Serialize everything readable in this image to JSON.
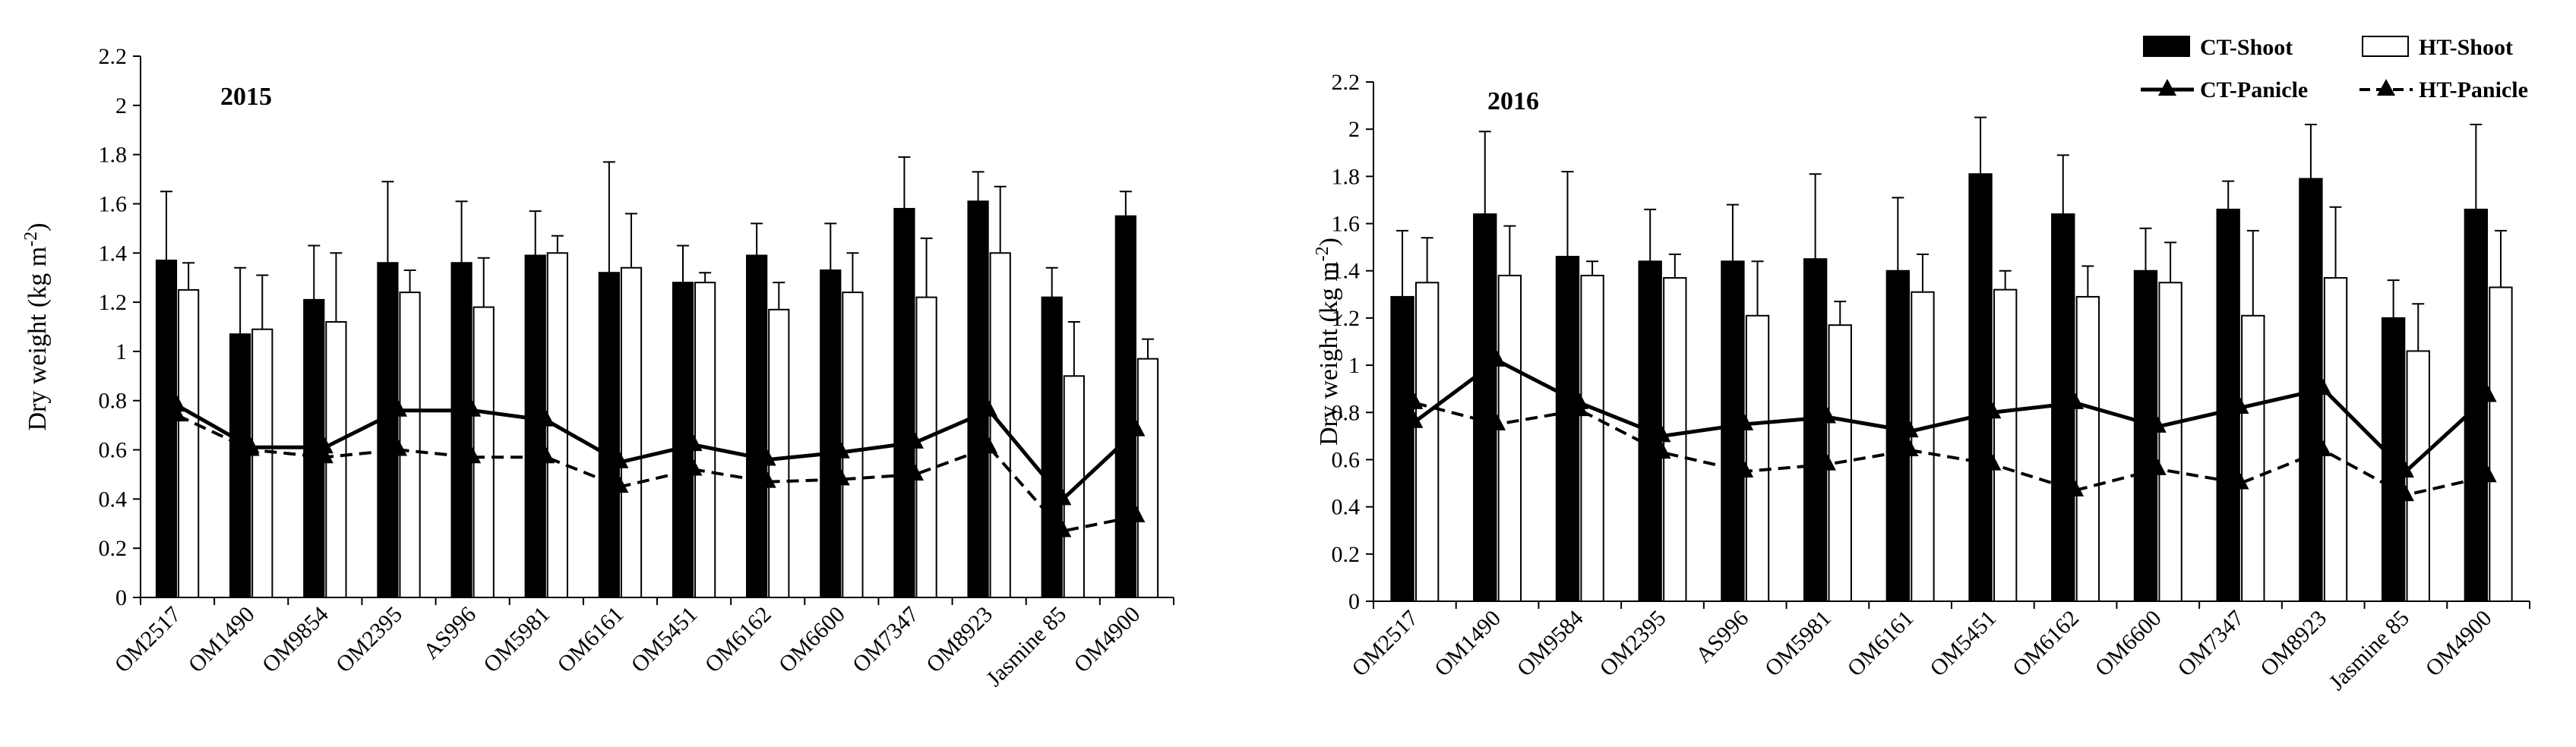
{
  "legend": {
    "items": [
      {
        "label": "CT-Shoot",
        "kind": "bar-filled"
      },
      {
        "label": "HT-Shoot",
        "kind": "bar-open"
      },
      {
        "label": "CT-Panicle",
        "kind": "line-solid"
      },
      {
        "label": "HT-Panicle",
        "kind": "line-dashed"
      }
    ],
    "placement": "top-right"
  },
  "chart_data": [
    {
      "type": "bar",
      "title": "2015",
      "xlabel": "",
      "ylabel_main": "Dry weight (kg  m",
      "ylabel_sup": "-2",
      "ylabel_close": ")",
      "ylim": [
        0,
        2.2
      ],
      "yticks": [
        "0",
        "0.2",
        "0.4",
        "0.6",
        "0.8",
        "1",
        "1.2",
        "1.4",
        "1.6",
        "1.8",
        "2",
        "2.2"
      ],
      "categories": [
        "OM2517",
        "OM1490",
        "OM9854",
        "OM2395",
        "AS996",
        "OM5981",
        "OM6161",
        "OM5451",
        "OM6162",
        "OM6600",
        "OM7347",
        "OM8923",
        "Jasmine 85",
        "OM4900"
      ],
      "bar_series": [
        {
          "name": "CT-Shoot",
          "values": [
            1.37,
            1.07,
            1.21,
            1.36,
            1.36,
            1.39,
            1.32,
            1.28,
            1.39,
            1.33,
            1.58,
            1.61,
            1.22,
            1.55
          ],
          "errors": [
            0.28,
            0.27,
            0.22,
            0.33,
            0.25,
            0.18,
            0.45,
            0.15,
            0.13,
            0.19,
            0.21,
            0.12,
            0.12,
            0.1
          ]
        },
        {
          "name": "HT-Shoot",
          "values": [
            1.25,
            1.09,
            1.12,
            1.24,
            1.18,
            1.4,
            1.34,
            1.28,
            1.17,
            1.24,
            1.22,
            1.4,
            0.9,
            0.97
          ],
          "errors": [
            0.11,
            0.22,
            0.28,
            0.09,
            0.2,
            0.07,
            0.22,
            0.04,
            0.11,
            0.16,
            0.24,
            0.27,
            0.22,
            0.08
          ]
        }
      ],
      "line_series": [
        {
          "name": "CT-Panicle",
          "values": [
            0.78,
            0.61,
            0.61,
            0.76,
            0.76,
            0.72,
            0.55,
            0.62,
            0.56,
            0.59,
            0.63,
            0.76,
            0.4,
            0.68
          ]
        },
        {
          "name": "HT-Panicle",
          "values": [
            0.74,
            0.6,
            0.57,
            0.6,
            0.57,
            0.57,
            0.45,
            0.52,
            0.47,
            0.48,
            0.5,
            0.61,
            0.27,
            0.33
          ]
        }
      ]
    },
    {
      "type": "bar",
      "title": "2016",
      "xlabel": "",
      "ylabel_main": "Dry weight (kg  m",
      "ylabel_sup": "-2",
      "ylabel_close": ")",
      "ylim": [
        0,
        2.2
      ],
      "yticks": [
        "0",
        "0.2",
        "0.4",
        "0.6",
        "0.8",
        "1",
        "1.2",
        "1.4",
        "1.6",
        "1.8",
        "2",
        "2.2"
      ],
      "categories": [
        "OM2517",
        "OM1490",
        "OM9584",
        "OM2395",
        "AS996",
        "OM5981",
        "OM6161",
        "OM5451",
        "OM6162",
        "OM6600",
        "OM7347",
        "OM8923",
        "Jasmine 85",
        "OM4900"
      ],
      "bar_series": [
        {
          "name": "CT-Shoot",
          "values": [
            1.29,
            1.64,
            1.46,
            1.44,
            1.44,
            1.45,
            1.4,
            1.81,
            1.64,
            1.4,
            1.66,
            1.79,
            1.2,
            1.66
          ],
          "errors": [
            0.28,
            0.35,
            0.36,
            0.22,
            0.24,
            0.36,
            0.31,
            0.24,
            0.25,
            0.18,
            0.12,
            0.23,
            0.16,
            0.36
          ]
        },
        {
          "name": "HT-Shoot",
          "values": [
            1.35,
            1.38,
            1.38,
            1.37,
            1.21,
            1.17,
            1.31,
            1.32,
            1.29,
            1.35,
            1.21,
            1.37,
            1.06,
            1.33
          ],
          "errors": [
            0.19,
            0.21,
            0.06,
            0.1,
            0.23,
            0.1,
            0.16,
            0.08,
            0.13,
            0.17,
            0.36,
            0.3,
            0.2,
            0.24
          ]
        }
      ],
      "line_series": [
        {
          "name": "CT-Panicle",
          "values": [
            0.76,
            1.02,
            0.84,
            0.7,
            0.75,
            0.78,
            0.72,
            0.8,
            0.84,
            0.74,
            0.82,
            0.9,
            0.55,
            0.87
          ]
        },
        {
          "name": "HT-Panicle",
          "values": [
            0.84,
            0.75,
            0.81,
            0.63,
            0.55,
            0.58,
            0.64,
            0.58,
            0.47,
            0.56,
            0.5,
            0.64,
            0.45,
            0.53
          ]
        }
      ]
    }
  ]
}
